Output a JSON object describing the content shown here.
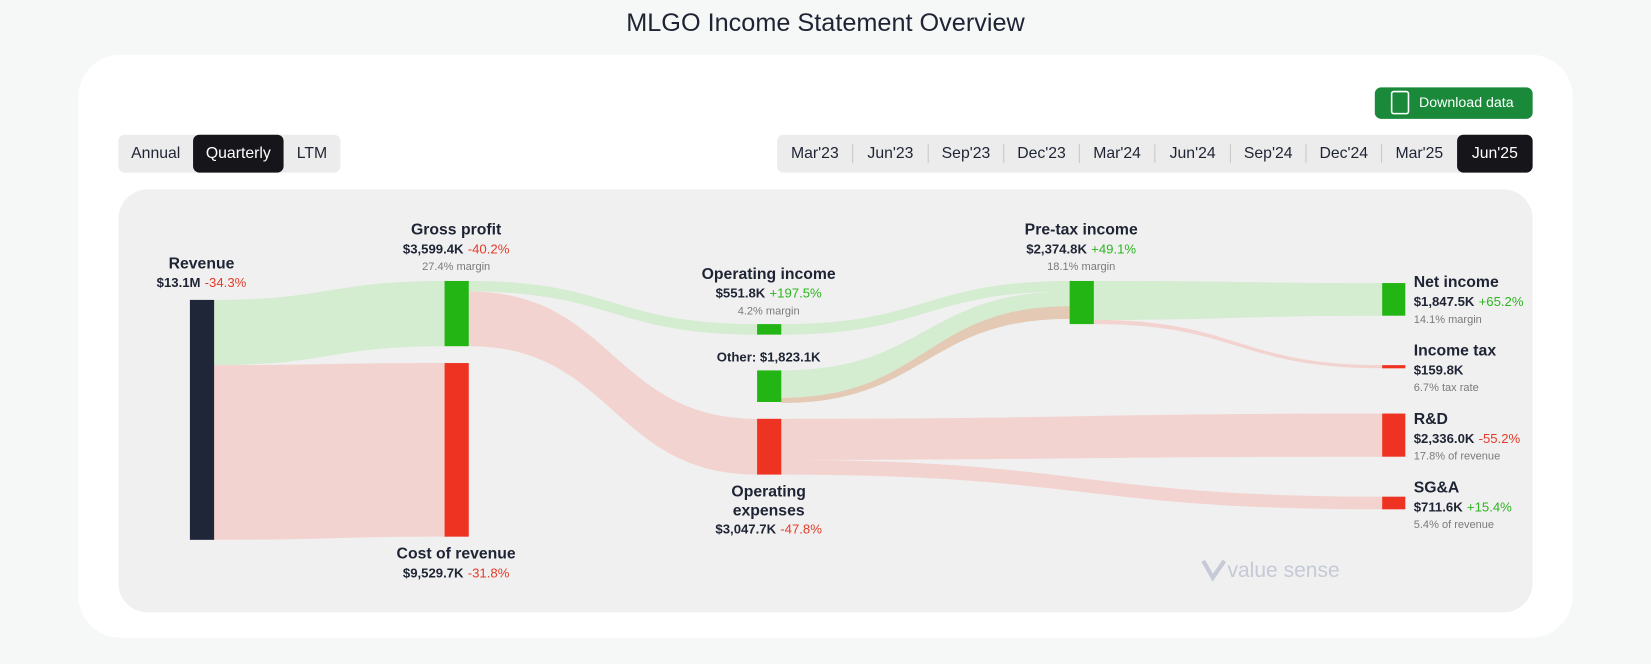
{
  "title": "MLGO Income Statement Overview",
  "download_button": "Download data",
  "periods": [
    "Annual",
    "Quarterly",
    "LTM"
  ],
  "active_period": 1,
  "dates": [
    "Mar'23",
    "Jun'23",
    "Sep'23",
    "Dec'23",
    "Mar'24",
    "Jun'24",
    "Sep'24",
    "Dec'24",
    "Mar'25",
    "Jun'25"
  ],
  "active_date": 9,
  "nodes": [
    {
      "label": "Revenue",
      "value": "$13.1M",
      "change": "-34.3%"
    },
    {
      "label": "Gross profit",
      "value": "$3,599.4K",
      "change": "-40.2%",
      "note": "27.4% margin"
    },
    {
      "label": "Cost of revenue",
      "value": "$9,529.7K",
      "change": "-31.8%"
    },
    {
      "label": "Operating income",
      "value": "$551.8K",
      "change": "+197.5%",
      "note": "4.2% margin"
    },
    {
      "label": "Other: $1,823.1K"
    },
    {
      "label": [
        "Operating",
        "expenses"
      ],
      "value": "$3,047.7K",
      "change": "-47.8%"
    },
    {
      "label": "Pre-tax income",
      "value": "$2,374.8K",
      "change": "+49.1%",
      "note": "18.1% margin"
    },
    {
      "label": "Net income",
      "value": "$1,847.5K",
      "change": "+65.2%",
      "note": "14.1% margin"
    },
    {
      "label": "Income tax",
      "value": "$159.8K",
      "note": "6.7% tax rate"
    },
    {
      "label": "R&D",
      "value": "$2,336.0K",
      "change": "-55.2%",
      "note": "17.8% of revenue"
    },
    {
      "label": "SG&A",
      "value": "$711.6K",
      "change": "+15.4%",
      "note": "5.4% of revenue"
    }
  ],
  "watermark": "value sense"
}
